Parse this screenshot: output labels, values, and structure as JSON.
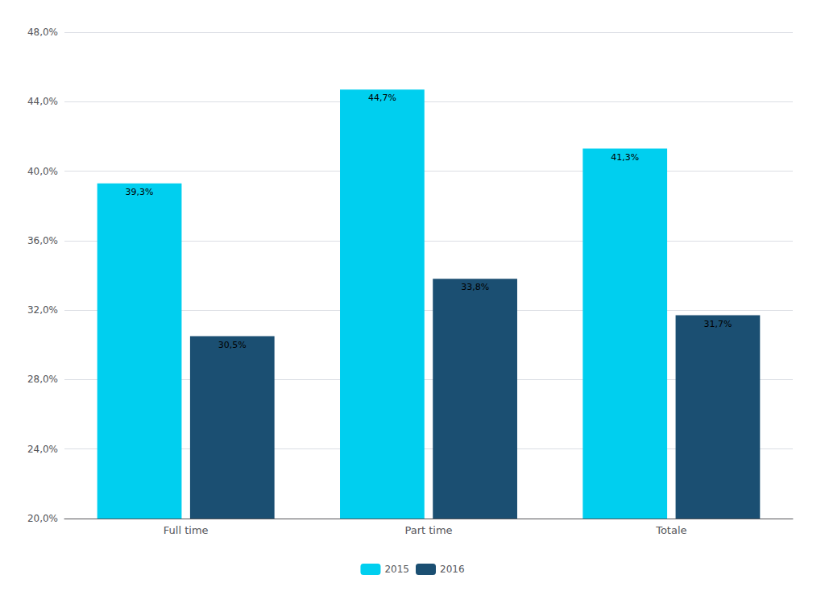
{
  "chart_data": {
    "type": "bar",
    "categories": [
      "Full time",
      "Part time",
      "Totale"
    ],
    "series": [
      {
        "name": "2015",
        "color": "#00CFEF",
        "values": [
          39.3,
          44.7,
          41.3
        ],
        "value_labels": [
          "39,3%",
          "44,7%",
          "41,3%"
        ]
      },
      {
        "name": "2016",
        "color": "#1B4F72",
        "values": [
          30.5,
          33.8,
          31.7
        ],
        "value_labels": [
          "30,5%",
          "33,8%",
          "31,7%"
        ]
      }
    ],
    "ylim": [
      20.0,
      48.0
    ],
    "yticks": [
      {
        "value": 20.0,
        "label": "20,0%"
      },
      {
        "value": 24.0,
        "label": "24,0%"
      },
      {
        "value": 28.0,
        "label": "28,0%"
      },
      {
        "value": 32.0,
        "label": "32,0%"
      },
      {
        "value": 36.0,
        "label": "36,0%"
      },
      {
        "value": 40.0,
        "label": "40,0%"
      },
      {
        "value": 44.0,
        "label": "44,0%"
      },
      {
        "value": 48.0,
        "label": "48,0%"
      }
    ],
    "grid": true,
    "legend": "bottom",
    "data_labels": true
  }
}
